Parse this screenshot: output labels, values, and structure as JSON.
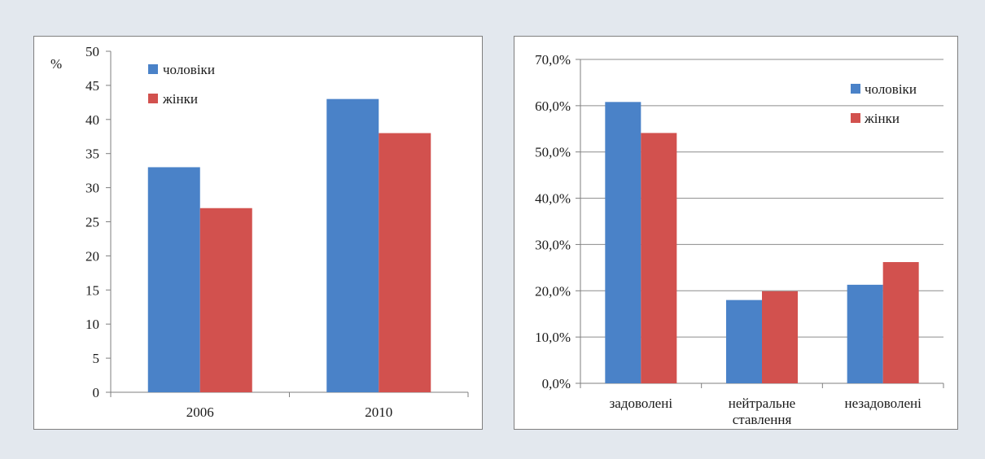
{
  "colors": {
    "men": "#4a82c8",
    "women": "#d2514e"
  },
  "chart_data": [
    {
      "type": "bar",
      "ylabel": "%",
      "categories": [
        "2006",
        "2010"
      ],
      "series": [
        {
          "name": "чоловіки",
          "values": [
            33,
            43
          ]
        },
        {
          "name": "жінки",
          "values": [
            27,
            38
          ]
        }
      ],
      "ylim": [
        0,
        50
      ],
      "yticks": [
        0,
        5,
        10,
        15,
        20,
        25,
        30,
        35,
        40,
        45,
        50
      ],
      "grid": false,
      "legend": "top-left"
    },
    {
      "type": "bar",
      "categories": [
        "задоволені",
        "нейтральне ставлення",
        "незадоволені"
      ],
      "series": [
        {
          "name": "чоловіки",
          "values": [
            60.8,
            18.0,
            21.3
          ]
        },
        {
          "name": "жінки",
          "values": [
            54.1,
            19.9,
            26.2
          ]
        }
      ],
      "ylim": [
        0,
        70
      ],
      "yticks": [
        "0,0%",
        "10,0%",
        "20,0%",
        "30,0%",
        "40,0%",
        "50,0%",
        "60,0%",
        "70,0%"
      ],
      "grid": true,
      "legend": "top-right"
    }
  ]
}
